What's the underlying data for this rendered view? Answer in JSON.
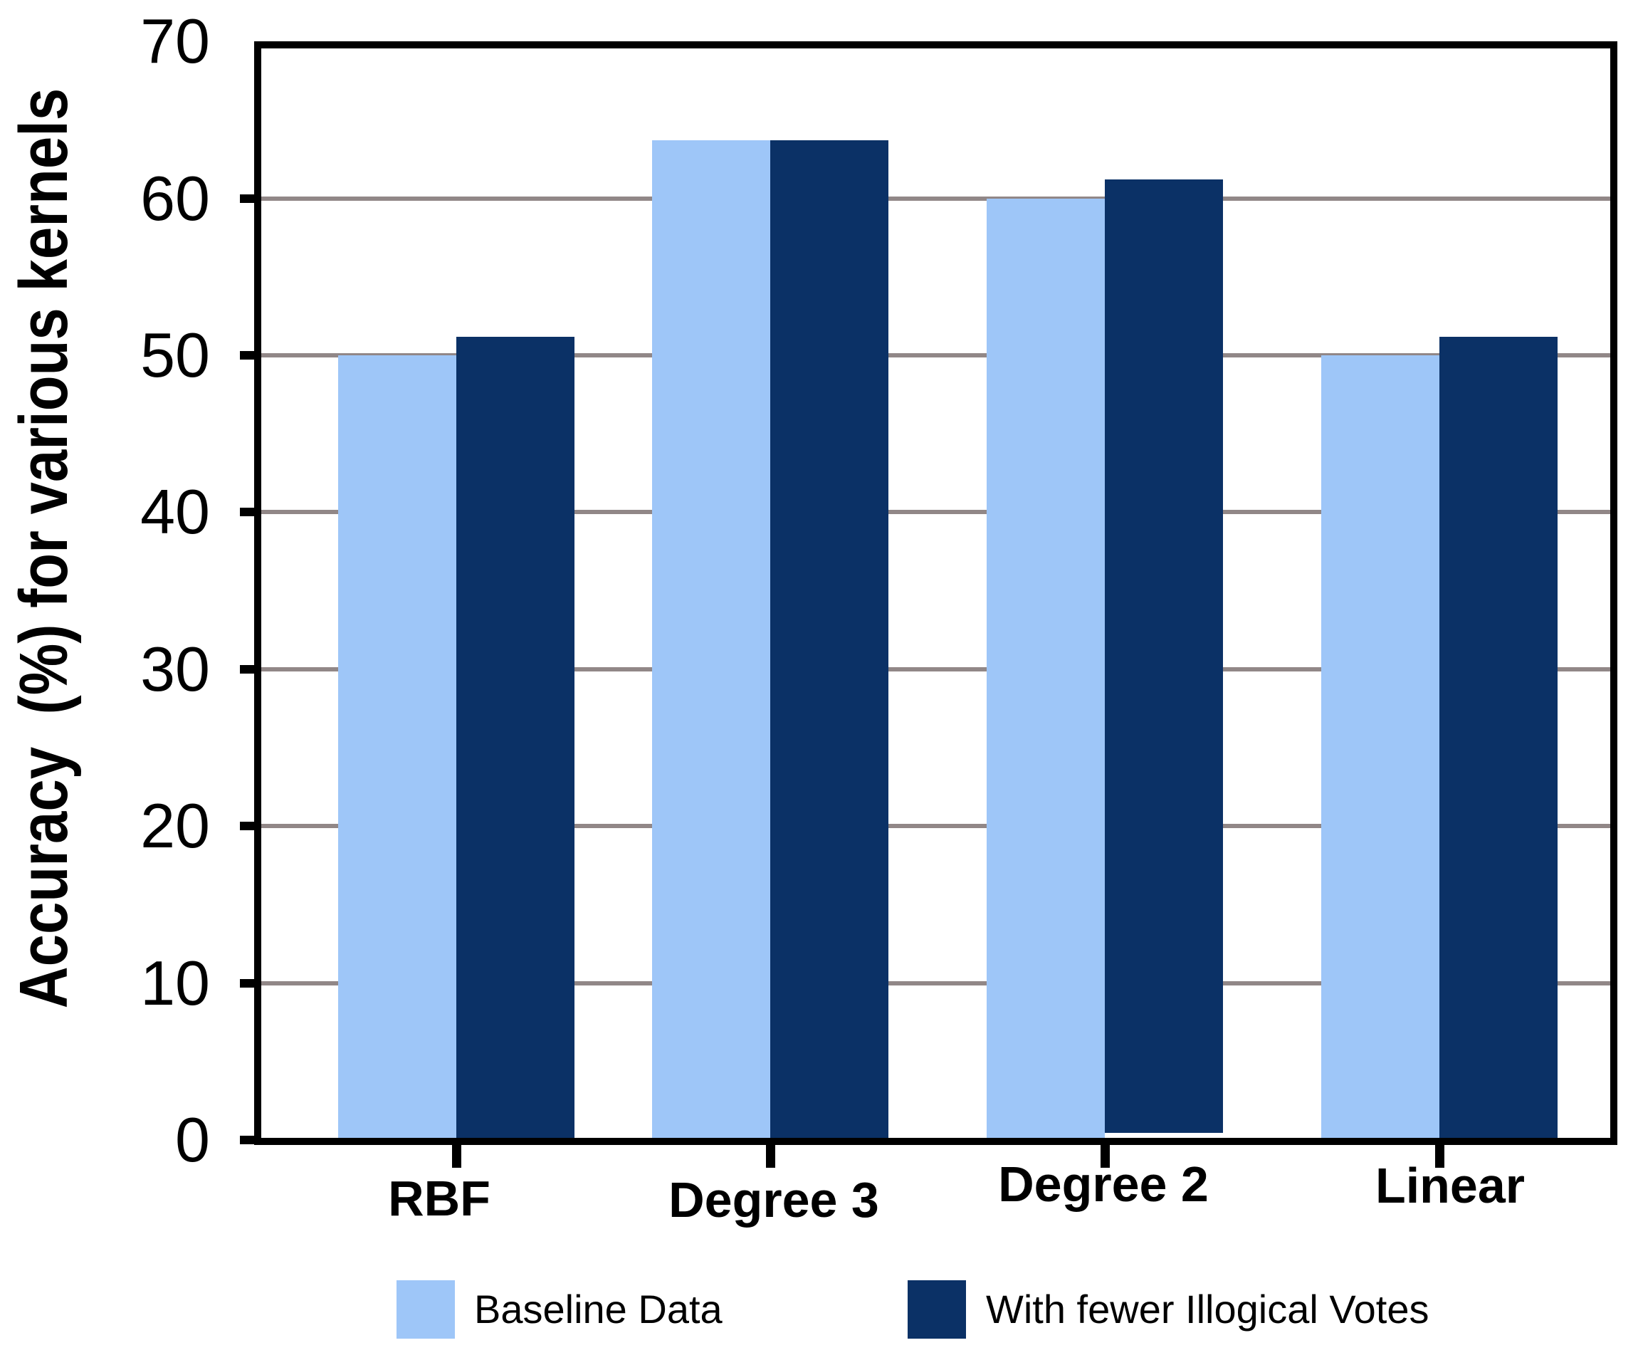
{
  "chart_data": {
    "type": "bar",
    "title": "",
    "categories": [
      "RBF",
      "Degree 3",
      "Degree 2",
      "Linear"
    ],
    "series": [
      {
        "name": "Baseline Data",
        "color": "#9ec6f8",
        "values": [
          50,
          63.7,
          60,
          50
        ]
      },
      {
        "name": "With fewer Illogical Votes",
        "color": "#0b3166",
        "values": [
          51.2,
          63.7,
          61.2,
          51.2
        ]
      }
    ],
    "xlabel": "",
    "ylabel": "Accuracy  (%) for various kernels",
    "ylim": [
      0,
      70
    ],
    "yticks": [
      0,
      10,
      20,
      30,
      40,
      50,
      60,
      70
    ],
    "grid": true,
    "legend_position": "bottom",
    "render_quirks": {
      "degree2_dark_bar_bottom_gap": true
    }
  },
  "colors": {
    "axis": "#000000",
    "gridline": "#918787",
    "background": "#ffffff"
  }
}
